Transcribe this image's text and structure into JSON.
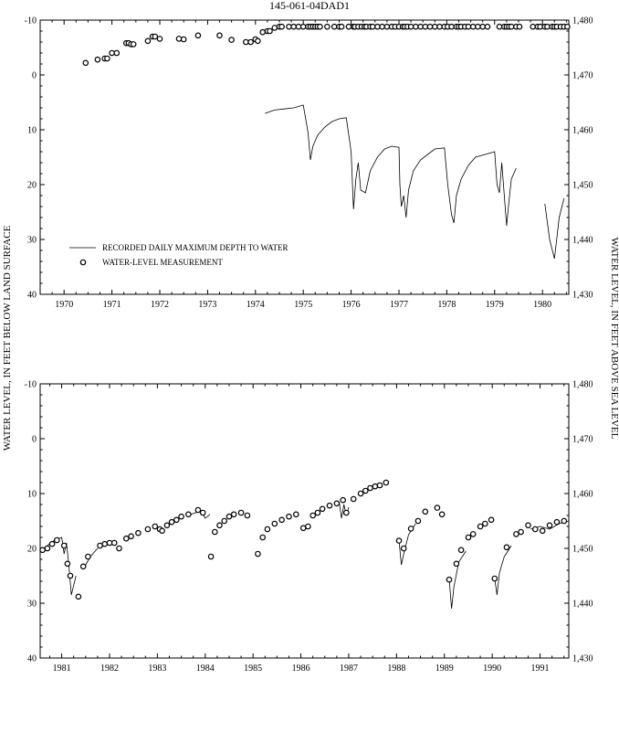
{
  "title": "145-061-04DAD1",
  "left_axis_label": "WATER LEVEL, IN FEET BELOW LAND SURFACE",
  "right_axis_label": "WATER LEVEL, IN FEET ABOVE SEA LEVEL",
  "legend": {
    "line_label": "RECORDED DAILY MAXIMUM DEPTH TO WATER",
    "marker_label": "WATER-LEVEL MEASUREMENT"
  },
  "chart_data": [
    {
      "type": "line",
      "title": "145-061-04DAD1",
      "xlabel": "",
      "ylabel": "WATER LEVEL, IN FEET BELOW LAND SURFACE",
      "ylabel_right": "WATER LEVEL, IN FEET ABOVE SEA LEVEL",
      "xlim": [
        1969.5,
        1980.55
      ],
      "ylim": [
        -10,
        40
      ],
      "y_inverted": true,
      "y_right_lim": [
        1480,
        1430
      ],
      "x_ticks": [
        1970,
        1971,
        1972,
        1973,
        1974,
        1975,
        1976,
        1977,
        1978,
        1979,
        1980
      ],
      "x_tick_labels": [
        "1970",
        "1971",
        "1972",
        "1973",
        "1974",
        "1975",
        "1976",
        "1977",
        "1978",
        "1979",
        "1980"
      ],
      "y_ticks": [
        -10,
        0,
        10,
        20,
        30,
        40
      ],
      "y_tick_labels": [
        "-10",
        "0",
        "10",
        "20",
        "30",
        "40"
      ],
      "y_right_ticks": [
        1480,
        1470,
        1460,
        1450,
        1440,
        1430
      ],
      "y_right_tick_labels": [
        "1,480",
        "1,470",
        "1,460",
        "1,450",
        "1,440",
        "1,430"
      ],
      "grid": false,
      "legend_position": "bottom-left",
      "series": [
        {
          "name": "RECORDED DAILY MAXIMUM DEPTH TO WATER",
          "style": "line",
          "segments": [
            {
              "x": [
                1974.2,
                1974.4,
                1974.6,
                1974.8,
                1975.0,
                1975.1,
                1975.15,
                1975.2,
                1975.3,
                1975.45,
                1975.6,
                1975.75,
                1975.9,
                1976.0,
                1976.05,
                1976.1,
                1976.15,
                1976.2,
                1976.3,
                1976.4,
                1976.55,
                1976.7,
                1976.85,
                1977.0,
                1977.02,
                1977.05,
                1977.1,
                1977.15,
                1977.2,
                1977.3,
                1977.45,
                1977.6,
                1977.75,
                1977.95,
                1978.02,
                1978.1,
                1978.15,
                1978.2,
                1978.3,
                1978.45,
                1978.6,
                1978.8,
                1979.0,
                1979.05,
                1979.1,
                1979.15,
                1979.25,
                1979.3,
                1979.35,
                1979.45
              ],
              "y": [
                7.0,
                6.4,
                6.2,
                6.0,
                5.5,
                10.5,
                15.5,
                13.0,
                11.0,
                9.5,
                8.5,
                8.0,
                7.8,
                14.0,
                24.5,
                19.0,
                16.0,
                21.0,
                21.5,
                17.5,
                15.0,
                13.5,
                13.0,
                13.2,
                20.0,
                24.0,
                22.0,
                26.0,
                21.0,
                17.5,
                15.5,
                14.5,
                13.5,
                13.3,
                20.0,
                25.5,
                27.0,
                22.0,
                19.0,
                16.5,
                15.0,
                14.5,
                14.0,
                20.0,
                21.5,
                16.0,
                27.5,
                23.0,
                19.0,
                17.0
              ]
            },
            {
              "x": [
                1980.05,
                1980.15,
                1980.25,
                1980.35,
                1980.45
              ],
              "y": [
                23.5,
                30.0,
                33.5,
                26.0,
                22.5
              ]
            }
          ]
        },
        {
          "name": "WATER-LEVEL MEASUREMENT",
          "style": "marker",
          "x": [
            1970.45,
            1970.7,
            1970.85,
            1970.9,
            1971.0,
            1971.1,
            1971.3,
            1971.35,
            1971.4,
            1971.45,
            1971.75,
            1971.85,
            1971.9,
            1972.0,
            1972.4,
            1972.5,
            1972.8,
            1973.25,
            1973.5,
            1973.8,
            1973.9,
            1974.0,
            1974.05,
            1974.15,
            1974.25,
            1974.3,
            1974.4,
            1974.5,
            1974.55,
            1974.7,
            1974.8,
            1974.9,
            1975.0,
            1975.1,
            1975.15,
            1975.2,
            1975.25,
            1975.3,
            1975.35,
            1975.5,
            1975.65,
            1975.75,
            1975.8,
            1975.95,
            1976.05,
            1976.08,
            1976.15,
            1976.22,
            1976.28,
            1976.32,
            1976.4,
            1976.45,
            1976.55,
            1976.65,
            1976.75,
            1976.85,
            1976.92,
            1977.0,
            1977.08,
            1977.12,
            1977.18,
            1977.25,
            1977.35,
            1977.45,
            1977.55,
            1977.65,
            1977.75,
            1977.85,
            1977.95,
            1978.02,
            1978.1,
            1978.2,
            1978.25,
            1978.3,
            1978.38,
            1978.45,
            1978.55,
            1978.65,
            1978.75,
            1978.85,
            1979.1,
            1979.2,
            1979.25,
            1979.3,
            1979.35,
            1979.45,
            1979.52,
            1979.8,
            1979.9,
            1979.95,
            1980.05,
            1980.1,
            1980.2,
            1980.25,
            1980.3,
            1980.38,
            1980.45,
            1980.52
          ],
          "y": [
            -2.2,
            -2.8,
            -3.0,
            -3.0,
            -4.0,
            -4.0,
            -5.8,
            -5.8,
            -5.6,
            -5.6,
            -6.2,
            -7.0,
            -7.0,
            -6.6,
            -6.6,
            -6.5,
            -7.2,
            -7.2,
            -6.4,
            -6.0,
            -6.0,
            -6.5,
            -6.2,
            -7.8,
            -8.0,
            -8.0,
            -8.6,
            -8.8,
            -8.8,
            -8.8,
            -8.8,
            -8.8,
            -8.8,
            -8.8,
            -8.8,
            -8.8,
            -8.8,
            -8.8,
            -8.8,
            -8.8,
            -8.8,
            -8.8,
            -8.8,
            -8.8,
            -8.8,
            -8.8,
            -8.8,
            -8.8,
            -8.8,
            -8.8,
            -8.8,
            -8.8,
            -8.8,
            -8.8,
            -8.8,
            -8.8,
            -8.8,
            -8.8,
            -8.8,
            -8.8,
            -8.8,
            -8.8,
            -8.8,
            -8.8,
            -8.8,
            -8.8,
            -8.8,
            -8.8,
            -8.8,
            -8.8,
            -8.8,
            -8.8,
            -8.8,
            -8.8,
            -8.8,
            -8.8,
            -8.8,
            -8.8,
            -8.8,
            -8.8,
            -8.8,
            -8.8,
            -8.8,
            -8.8,
            -8.8,
            -8.8,
            -8.8,
            -8.8,
            -8.8,
            -8.8,
            -8.8,
            -8.8,
            -8.8,
            -8.8,
            -8.8,
            -8.8,
            -8.8,
            -8.8
          ]
        }
      ]
    },
    {
      "type": "line",
      "title": "",
      "xlabel": "",
      "ylabel": "WATER LEVEL, IN FEET BELOW LAND SURFACE",
      "ylabel_right": "WATER LEVEL, IN FEET ABOVE SEA LEVEL",
      "xlim": [
        1980.55,
        1991.6
      ],
      "ylim": [
        -10,
        40
      ],
      "y_inverted": true,
      "y_right_lim": [
        1480,
        1430
      ],
      "x_ticks": [
        1981,
        1982,
        1983,
        1984,
        1985,
        1986,
        1987,
        1988,
        1989,
        1990,
        1991
      ],
      "x_tick_labels": [
        "1981",
        "1982",
        "1983",
        "1984",
        "1985",
        "1986",
        "1987",
        "1988",
        "1989",
        "1990",
        "1991"
      ],
      "y_ticks": [
        -10,
        0,
        10,
        20,
        30,
        40
      ],
      "y_tick_labels": [
        "-10",
        "0",
        "10",
        "20",
        "30",
        "40"
      ],
      "y_right_ticks": [
        1480,
        1470,
        1460,
        1450,
        1440,
        1430
      ],
      "y_right_tick_labels": [
        "1,480",
        "1,470",
        "1,460",
        "1,450",
        "1,440",
        "1,430"
      ],
      "grid": false,
      "series": [
        {
          "name": "RECORDED DAILY MAXIMUM DEPTH TO WATER",
          "style": "line",
          "segments": [
            {
              "x": [
                1980.55,
                1980.7,
                1980.85,
                1981.0,
                1981.05,
                1981.1,
                1981.15,
                1981.2,
                1981.3
              ],
              "y": [
                20.5,
                19.5,
                18.5,
                18.0,
                21.0,
                19.0,
                23.0,
                28.5,
                25.0
              ]
            },
            {
              "x": [
                1981.5,
                1981.6,
                1981.75
              ],
              "y": [
                23.0,
                21.5,
                20.0
              ]
            },
            {
              "x": [
                1983.7,
                1983.8,
                1983.9,
                1984.0,
                1984.1
              ],
              "y": [
                13.8,
                13.5,
                13.0,
                14.5,
                13.8
              ]
            },
            {
              "x": [
                1986.8,
                1986.85,
                1986.9,
                1986.95,
                1987.0
              ],
              "y": [
                11.5,
                14.5,
                12.0,
                14.0,
                12.5
              ]
            },
            {
              "x": [
                1988.05,
                1988.1,
                1988.15,
                1988.25,
                1988.4
              ],
              "y": [
                18.5,
                23.0,
                21.0,
                17.5,
                15.5
              ]
            },
            {
              "x": [
                1989.1,
                1989.15,
                1989.2,
                1989.3,
                1989.45
              ],
              "y": [
                25.5,
                31.0,
                27.0,
                22.5,
                20.5
              ]
            },
            {
              "x": [
                1990.05,
                1990.1,
                1990.15,
                1990.25,
                1990.4
              ],
              "y": [
                25.5,
                28.5,
                24.5,
                21.5,
                19.5
              ]
            },
            {
              "x": [
                1990.8,
                1991.0,
                1991.2,
                1991.4,
                1991.6
              ],
              "y": [
                16.5,
                16.0,
                16.5,
                15.5,
                15.0
              ]
            }
          ]
        },
        {
          "name": "WATER-LEVEL MEASUREMENT",
          "style": "marker",
          "x": [
            1980.6,
            1980.7,
            1980.8,
            1980.9,
            1981.05,
            1981.12,
            1981.18,
            1981.35,
            1981.45,
            1981.55,
            1981.8,
            1981.9,
            1982.0,
            1982.1,
            1982.2,
            1982.35,
            1982.45,
            1982.6,
            1982.8,
            1982.95,
            1983.05,
            1983.1,
            1983.2,
            1983.3,
            1983.4,
            1983.5,
            1983.65,
            1983.85,
            1983.95,
            1984.12,
            1984.2,
            1984.3,
            1984.4,
            1984.5,
            1984.6,
            1984.75,
            1984.88,
            1985.1,
            1985.2,
            1985.3,
            1985.45,
            1985.6,
            1985.75,
            1985.9,
            1986.05,
            1986.15,
            1986.25,
            1986.35,
            1986.45,
            1986.6,
            1986.75,
            1986.88,
            1986.95,
            1987.1,
            1987.25,
            1987.35,
            1987.45,
            1987.55,
            1987.65,
            1987.78,
            1988.05,
            1988.15,
            1988.3,
            1988.45,
            1988.6,
            1988.85,
            1988.95,
            1989.1,
            1989.25,
            1989.35,
            1989.5,
            1989.6,
            1989.75,
            1989.85,
            1989.98,
            1990.05,
            1990.3,
            1990.5,
            1990.6,
            1990.75,
            1990.9,
            1991.05,
            1991.2,
            1991.35,
            1991.5
          ],
          "y": [
            20.3,
            20.0,
            19.2,
            18.5,
            19.5,
            22.8,
            25.0,
            28.8,
            23.3,
            21.5,
            19.5,
            19.2,
            19.0,
            19.0,
            20.0,
            18.2,
            17.8,
            17.2,
            16.5,
            16.0,
            16.5,
            16.8,
            15.8,
            15.2,
            14.8,
            14.2,
            13.8,
            13.0,
            13.5,
            21.5,
            17.0,
            15.8,
            15.0,
            14.2,
            13.8,
            13.5,
            14.0,
            21.0,
            18.0,
            16.5,
            15.5,
            14.8,
            14.2,
            13.8,
            16.3,
            16.0,
            14.0,
            13.5,
            12.8,
            12.2,
            11.8,
            11.2,
            13.5,
            11.0,
            10.0,
            9.5,
            9.0,
            8.7,
            8.5,
            8.0,
            18.6,
            20.0,
            16.4,
            15.0,
            13.3,
            12.6,
            13.8,
            25.7,
            22.8,
            20.3,
            18.0,
            17.4,
            16.0,
            15.5,
            14.8,
            25.5,
            19.8,
            17.4,
            17.0,
            15.8,
            16.5,
            16.8,
            15.8,
            15.2,
            15.0
          ]
        }
      ]
    }
  ]
}
